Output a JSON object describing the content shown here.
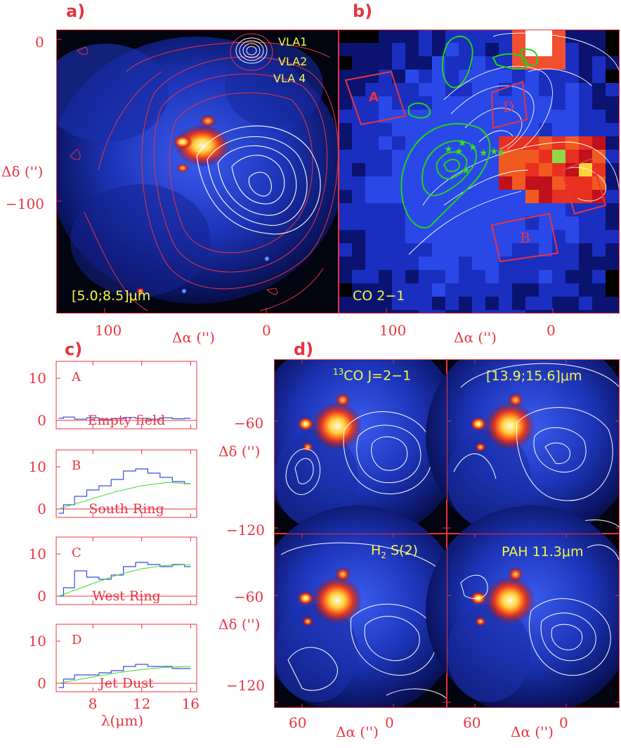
{
  "figure": {
    "panels": {
      "a": {
        "letter": "a)",
        "inset_label": "[5.0;8.5]μm",
        "sources": [
          "VLA1",
          "VLA2",
          "VLA 4"
        ],
        "xticks": [
          "100",
          "0"
        ],
        "yticks": [
          "0",
          "−100"
        ],
        "xlabel": "Δα ('')",
        "ylabel": "Δδ ('')"
      },
      "b": {
        "letter": "b)",
        "inset_label": "CO 2−1",
        "regions": [
          "A",
          "B",
          "D"
        ],
        "xticks": [
          "100",
          "0"
        ],
        "xlabel": "Δα ('')"
      },
      "c": {
        "letter": "c)",
        "yticks": [
          "10",
          "0"
        ],
        "spectra": [
          {
            "letter": "A",
            "name": "Empty field"
          },
          {
            "letter": "B",
            "name": "South Ring"
          },
          {
            "letter": "C",
            "name": "West Ring"
          },
          {
            "letter": "D",
            "name": "Jet Dust"
          }
        ],
        "xticks": [
          "8",
          "12",
          "16"
        ],
        "xlabel": "λ(μm)"
      },
      "d": {
        "letter": "d)",
        "subpanels": [
          {
            "label_pre": "13",
            "label": "CO J=2−1"
          },
          {
            "label": "[13.9;15.6]μm"
          },
          {
            "label": "H",
            "label_sub": "2",
            "label_post": " S(2)"
          },
          {
            "label": "PAH 11.3μm"
          }
        ],
        "yticks": [
          "−60",
          "−120"
        ],
        "xticks": [
          "60",
          "0"
        ],
        "xlabel": "Δα ('')",
        "ylabel": "Δδ ('')"
      }
    },
    "colors": {
      "frame": "#e8343f",
      "contour_white": "#ffffff",
      "contour_green": "#22d31c",
      "text_yellow": "#f4f74a",
      "spectrum_blue": "#3a4ae0",
      "fit_green": "#3bdc2a"
    }
  },
  "chart_data": [
    {
      "type": "line",
      "panel": "c-A",
      "title": "Empty field",
      "xlabel": "λ(μm)",
      "ylim": [
        -2,
        14
      ],
      "xlim": [
        5,
        16.5
      ],
      "series": [
        {
          "values_x": [
            5.2,
            6,
            7,
            8,
            9,
            10,
            11,
            12,
            13,
            14,
            15,
            16
          ],
          "values": [
            0.5,
            0.8,
            0.3,
            0.6,
            0.2,
            0.4,
            0.7,
            0.5,
            0.3,
            0.6,
            0.4,
            0.5
          ]
        }
      ]
    },
    {
      "type": "line",
      "panel": "c-B",
      "title": "South Ring",
      "xlabel": "λ(μm)",
      "ylim": [
        -2,
        14
      ],
      "xlim": [
        5,
        16.5
      ],
      "series": [
        {
          "values_x": [
            5.2,
            6,
            7,
            8,
            9,
            10,
            11,
            12,
            13,
            14,
            15,
            16
          ],
          "values": [
            -1,
            1,
            3,
            4.5,
            5.5,
            7,
            9,
            9.5,
            8.5,
            7.5,
            6.5,
            6
          ]
        },
        {
          "values_x": [
            5.2,
            8,
            10,
            12,
            14,
            16
          ],
          "values": [
            0,
            2.5,
            4.2,
            5.5,
            6.3,
            6
          ]
        }
      ]
    },
    {
      "type": "line",
      "panel": "c-C",
      "title": "West Ring",
      "xlabel": "λ(μm)",
      "ylim": [
        -2,
        14
      ],
      "xlim": [
        5,
        16.5
      ],
      "series": [
        {
          "values_x": [
            5.2,
            6,
            7,
            8,
            9,
            10,
            11,
            12,
            13,
            14,
            15,
            16
          ],
          "values": [
            0,
            2,
            6,
            4.5,
            4,
            5,
            7,
            8,
            7.5,
            7,
            7.5,
            7
          ]
        },
        {
          "values_x": [
            5.2,
            8,
            10,
            12,
            14,
            16
          ],
          "values": [
            0,
            3,
            5,
            6.5,
            7.3,
            7.5
          ]
        }
      ]
    },
    {
      "type": "line",
      "panel": "c-D",
      "title": "Jet Dust",
      "xlabel": "λ(μm)",
      "ylim": [
        -2,
        14
      ],
      "xlim": [
        5,
        16.5
      ],
      "series": [
        {
          "values_x": [
            5.2,
            6,
            7,
            8,
            9,
            10,
            11,
            12,
            13,
            14,
            15,
            16
          ],
          "values": [
            -1,
            1,
            2,
            2,
            2.5,
            3,
            4,
            4.5,
            4,
            4,
            3.5,
            3.5
          ]
        },
        {
          "values_x": [
            5.2,
            8,
            10,
            12,
            14,
            16
          ],
          "values": [
            0,
            1.5,
            2.5,
            3.3,
            3.8,
            4
          ]
        }
      ]
    }
  ]
}
